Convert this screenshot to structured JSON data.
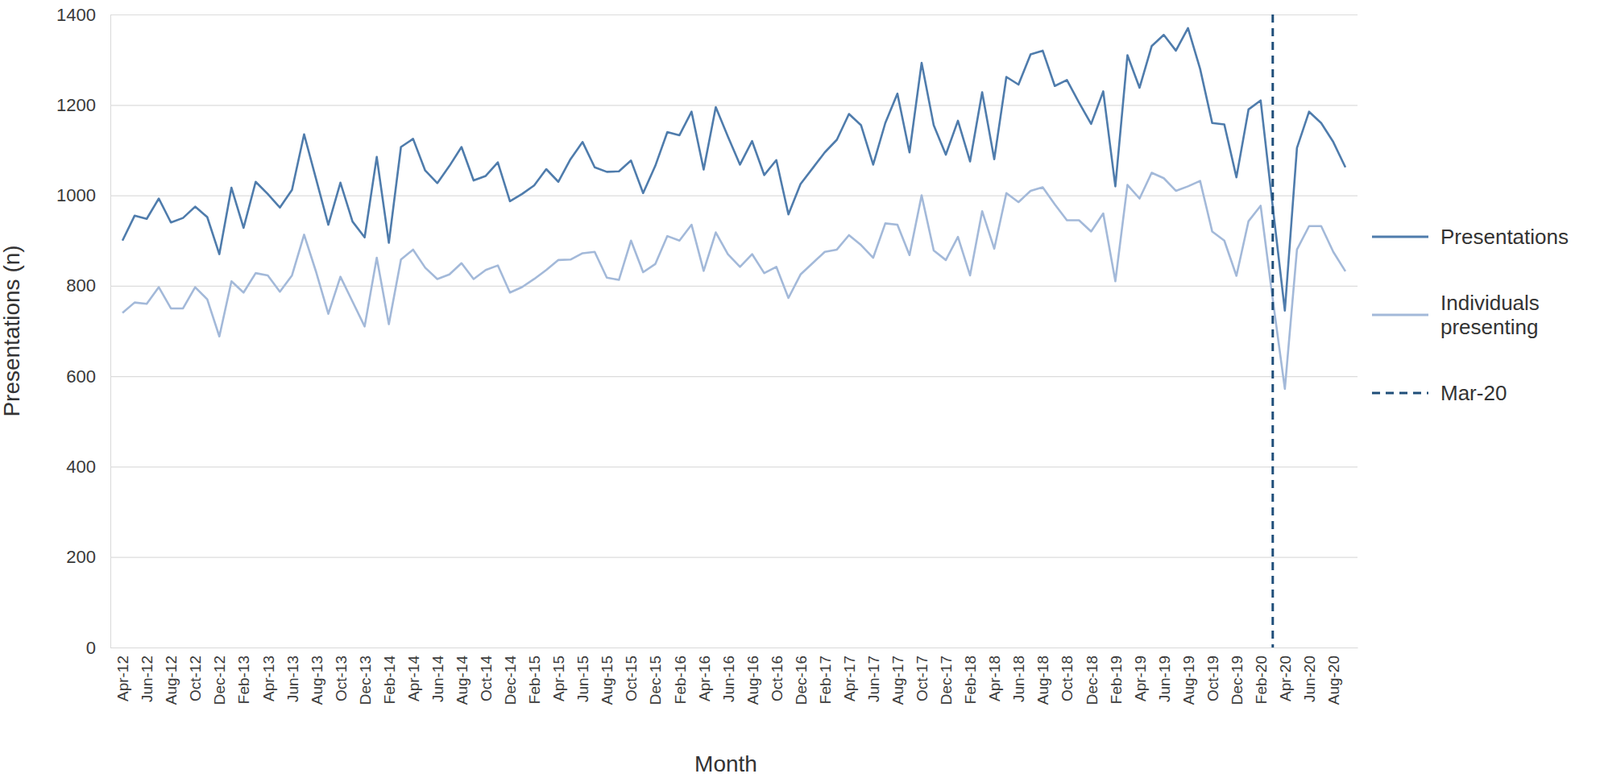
{
  "chart_data": {
    "type": "line",
    "x_label": "Month",
    "y_label": "Presentations (n)",
    "categories": [
      "Apr-12",
      null,
      "Jun-12",
      null,
      "Aug-12",
      null,
      "Oct-12",
      null,
      "Dec-12",
      null,
      "Feb-13",
      null,
      "Apr-13",
      null,
      "Jun-13",
      null,
      "Aug-13",
      null,
      "Oct-13",
      null,
      "Dec-13",
      null,
      "Feb-14",
      null,
      "Apr-14",
      null,
      "Jun-14",
      null,
      "Aug-14",
      null,
      "Oct-14",
      null,
      "Dec-14",
      null,
      "Feb-15",
      null,
      "Apr-15",
      null,
      "Jun-15",
      null,
      "Aug-15",
      null,
      "Oct-15",
      null,
      "Dec-15",
      null,
      "Feb-16",
      null,
      "Apr-16",
      null,
      "Jun-16",
      null,
      "Aug-16",
      null,
      "Oct-16",
      null,
      "Dec-16",
      null,
      "Feb-17",
      null,
      "Apr-17",
      null,
      "Jun-17",
      null,
      "Aug-17",
      null,
      "Oct-17",
      null,
      "Dec-17",
      null,
      "Feb-18",
      null,
      "Apr-18",
      null,
      "Jun-18",
      null,
      "Aug-18",
      null,
      "Oct-18",
      null,
      "Dec-18",
      null,
      "Feb-19",
      null,
      "Apr-19",
      null,
      "Jun-19",
      null,
      "Aug-19",
      null,
      "Oct-19",
      null,
      "Dec-19",
      null,
      "Feb-20",
      null,
      "Apr-20",
      null,
      "Jun-20",
      null,
      "Aug-20",
      null
    ],
    "series": [
      {
        "name": "Presentations",
        "color": "#4f7cac",
        "line_style": "solid",
        "values": [
          900,
          955,
          948,
          993,
          940,
          950,
          975,
          952,
          870,
          1017,
          928,
          1030,
          1003,
          973,
          1012,
          1135,
          1035,
          935,
          1028,
          942,
          907,
          1085,
          895,
          1107,
          1125,
          1055,
          1027,
          1065,
          1107,
          1033,
          1043,
          1073,
          987,
          1003,
          1022,
          1058,
          1030,
          1080,
          1118,
          1062,
          1052,
          1053,
          1077,
          1005,
          1065,
          1140,
          1133,
          1185,
          1057,
          1195,
          1130,
          1068,
          1120,
          1045,
          1078,
          958,
          1025,
          1060,
          1095,
          1123,
          1180,
          1155,
          1068,
          1160,
          1225,
          1095,
          1293,
          1155,
          1090,
          1165,
          1075,
          1228,
          1080,
          1262,
          1245,
          1312,
          1320,
          1242,
          1255,
          1205,
          1158,
          1230,
          1020,
          1310,
          1238,
          1330,
          1355,
          1320,
          1370,
          1280,
          1160,
          1157,
          1040,
          1190,
          1210,
          975,
          745,
          1105,
          1185,
          1160,
          1118,
          1062
        ]
      },
      {
        "name": "Individuals presenting",
        "color": "#a3b9d9",
        "line_style": "solid",
        "values": [
          740,
          763,
          760,
          797,
          750,
          750,
          797,
          770,
          688,
          810,
          785,
          828,
          823,
          787,
          823,
          913,
          830,
          738,
          820,
          765,
          710,
          862,
          715,
          858,
          880,
          840,
          815,
          825,
          850,
          815,
          835,
          845,
          785,
          797,
          815,
          835,
          857,
          858,
          872,
          875,
          818,
          813,
          900,
          830,
          848,
          910,
          900,
          935,
          833,
          918,
          870,
          842,
          870,
          828,
          842,
          773,
          825,
          850,
          875,
          880,
          912,
          890,
          862,
          938,
          935,
          868,
          1000,
          878,
          857,
          908,
          823,
          965,
          882,
          1005,
          985,
          1010,
          1018,
          980,
          945,
          945,
          920,
          960,
          810,
          1023,
          993,
          1050,
          1038,
          1010,
          1020,
          1032,
          920,
          900,
          822,
          943,
          977,
          770,
          572,
          880,
          932,
          932,
          875,
          832
        ]
      },
      {
        "name": "Mar-20",
        "type": "vline",
        "color": "#1f4e79",
        "line_style": "dashed",
        "x": 95
      }
    ],
    "ylim": [
      0,
      1400
    ],
    "yticks": [
      0,
      200,
      400,
      600,
      800,
      1000,
      1200,
      1400
    ],
    "grid": true,
    "legend": "right"
  }
}
